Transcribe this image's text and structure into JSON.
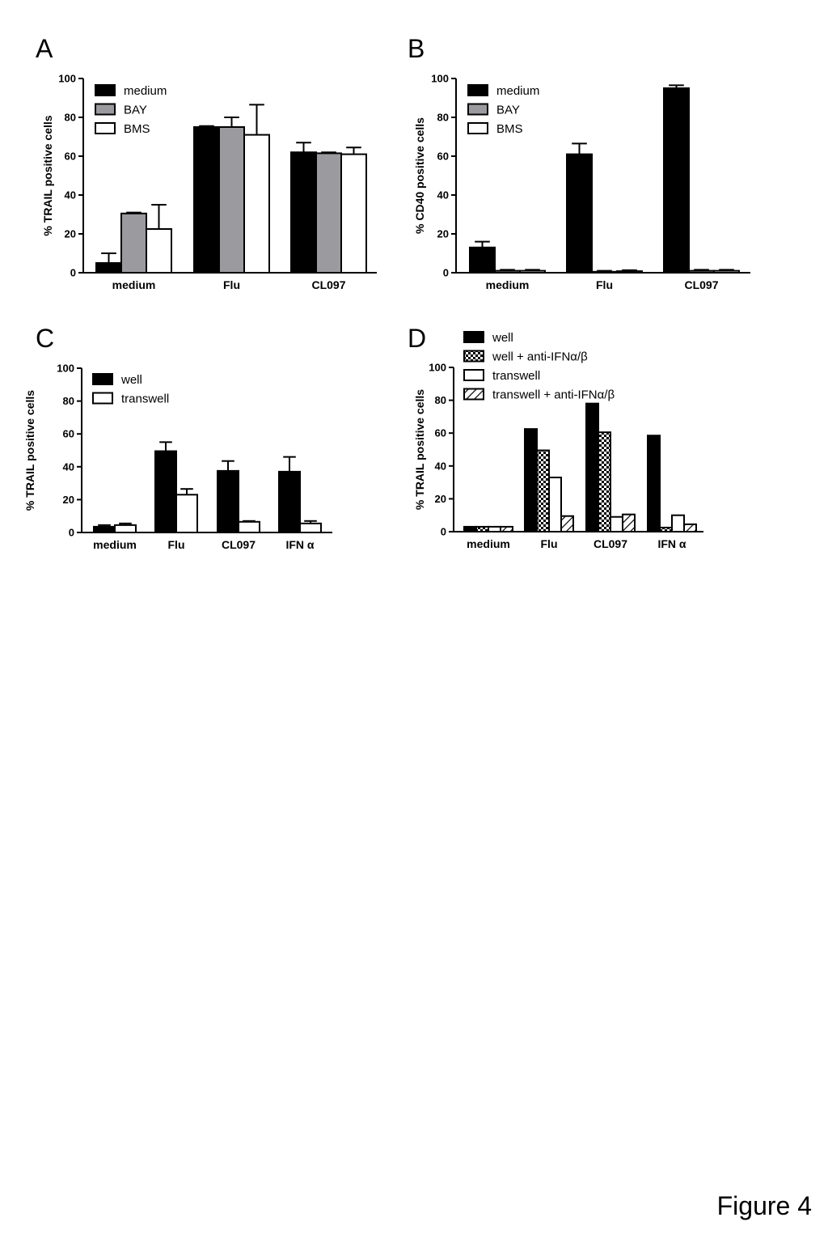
{
  "figure_label": "Figure 4",
  "chart_data": [
    {
      "panel": "A",
      "type": "bar",
      "title": "",
      "xlabel": "",
      "ylabel": "% TRAIL positive cells",
      "ylim": [
        0,
        100
      ],
      "yticks": [
        0,
        20,
        40,
        60,
        80,
        100
      ],
      "categories": [
        "medium",
        "Flu",
        "CL097"
      ],
      "legend_position": "top-left",
      "series": [
        {
          "name": "medium",
          "fill": "solid",
          "color": "#000000",
          "values": [
            5,
            75,
            62
          ],
          "errors": [
            5,
            0.5,
            5
          ]
        },
        {
          "name": "BAY",
          "fill": "solid",
          "color": "#9b9b9f",
          "values": [
            30.5,
            75,
            61.5
          ],
          "errors": [
            0.5,
            5,
            0.5
          ]
        },
        {
          "name": "BMS",
          "fill": "solid",
          "color": "#ffffff",
          "values": [
            22.5,
            71,
            61
          ],
          "errors": [
            12.5,
            15.5,
            3.5
          ]
        }
      ]
    },
    {
      "panel": "B",
      "type": "bar",
      "title": "",
      "xlabel": "",
      "ylabel": "% CD40 positive cells",
      "ylim": [
        0,
        100
      ],
      "yticks": [
        0,
        20,
        40,
        60,
        80,
        100
      ],
      "categories": [
        "medium",
        "Flu",
        "CL097"
      ],
      "legend_position": "top-left",
      "series": [
        {
          "name": "medium",
          "fill": "solid",
          "color": "#000000",
          "values": [
            13,
            61,
            95
          ],
          "errors": [
            3,
            5.5,
            1.5
          ]
        },
        {
          "name": "BAY",
          "fill": "solid",
          "color": "#9b9b9f",
          "values": [
            1,
            0.5,
            1
          ],
          "errors": [
            0.5,
            0.5,
            0.5
          ]
        },
        {
          "name": "BMS",
          "fill": "solid",
          "color": "#ffffff",
          "values": [
            1,
            0.8,
            1
          ],
          "errors": [
            0.5,
            0.5,
            0.5
          ]
        }
      ]
    },
    {
      "panel": "C",
      "type": "bar",
      "title": "",
      "xlabel": "",
      "ylabel": "% TRAIL positive cells",
      "ylim": [
        0,
        100
      ],
      "yticks": [
        0,
        20,
        40,
        60,
        80,
        100
      ],
      "categories": [
        "medium",
        "Flu",
        "CL097",
        "IFN α"
      ],
      "legend_position": "top-left",
      "series": [
        {
          "name": "well",
          "fill": "solid",
          "color": "#000000",
          "values": [
            3.5,
            49.5,
            37.5,
            37
          ],
          "errors": [
            1,
            5.5,
            6,
            9
          ]
        },
        {
          "name": "transwell",
          "fill": "solid",
          "color": "#ffffff",
          "values": [
            4.5,
            23,
            6.5,
            5.5
          ],
          "errors": [
            1,
            3.5,
            0.5,
            1.5
          ]
        }
      ]
    },
    {
      "panel": "D",
      "type": "bar",
      "title": "",
      "xlabel": "",
      "ylabel": "% TRAIL positive cells",
      "ylim": [
        0,
        100
      ],
      "yticks": [
        0,
        20,
        40,
        60,
        80,
        100
      ],
      "categories": [
        "medium",
        "Flu",
        "CL097",
        "IFN α"
      ],
      "legend_position": "above",
      "series": [
        {
          "name": "well",
          "fill": "solid",
          "color": "#000000",
          "values": [
            3,
            62.5,
            78,
            58.5
          ]
        },
        {
          "name": "well + anti-IFNα/β",
          "fill": "checker",
          "color": "#000000",
          "values": [
            3,
            49.5,
            60.5,
            2.5
          ]
        },
        {
          "name": "transwell",
          "fill": "solid",
          "color": "#ffffff",
          "values": [
            3,
            33,
            9,
            10
          ]
        },
        {
          "name": "transwell + anti-IFNα/β",
          "fill": "hatch",
          "color": "#000000",
          "values": [
            3,
            9.5,
            10.5,
            4.5
          ]
        }
      ]
    }
  ]
}
